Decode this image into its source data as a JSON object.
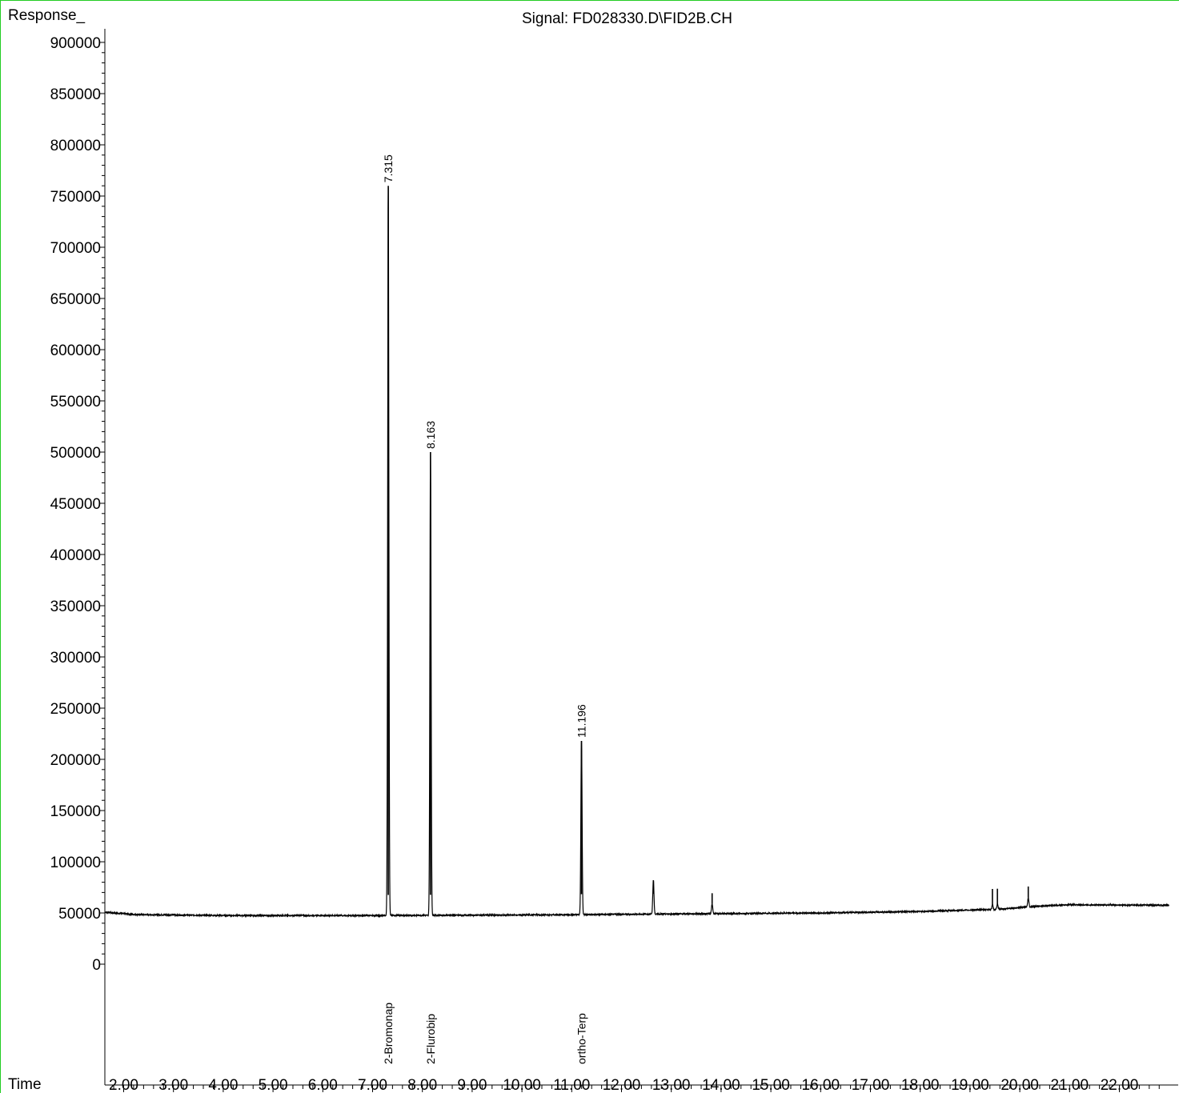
{
  "chart_data": {
    "type": "line",
    "title": "Signal: FD028330.D\\FID2B.CH",
    "ylabel": "Response_",
    "xlabel": "Time",
    "xlim": [
      1.3,
      23.0
    ],
    "ylim": [
      0,
      900000
    ],
    "x_ticks": [
      "2.00",
      "3.00",
      "4.00",
      "5.00",
      "6.00",
      "7.00",
      "8.00",
      "9.00",
      "10.00",
      "11.00",
      "12.00",
      "13.00",
      "14.00",
      "15.00",
      "16.00",
      "17.00",
      "18.00",
      "19.00",
      "20.00",
      "21.00",
      "22.00"
    ],
    "y_ticks": [
      "0",
      "50000",
      "100000",
      "150000",
      "200000",
      "250000",
      "300000",
      "350000",
      "400000",
      "450000",
      "500000",
      "550000",
      "600000",
      "650000",
      "700000",
      "750000",
      "800000",
      "850000",
      "900000"
    ],
    "baseline": [
      [
        1.3,
        57000
      ],
      [
        1.6,
        51000
      ],
      [
        2.2,
        48500
      ],
      [
        4.0,
        47500
      ],
      [
        7.0,
        47500
      ],
      [
        10.0,
        48000
      ],
      [
        13.0,
        49000
      ],
      [
        16.0,
        50000
      ],
      [
        18.0,
        51500
      ],
      [
        19.5,
        53500
      ],
      [
        20.5,
        57000
      ],
      [
        21.0,
        58000
      ],
      [
        23.0,
        57500
      ]
    ],
    "peaks": [
      {
        "rt": 7.315,
        "height": 760000,
        "label": "7.315",
        "compound": "2-Bromonap"
      },
      {
        "rt": 8.163,
        "height": 500000,
        "label": "8.163",
        "compound": "2-Flurobip"
      },
      {
        "rt": 11.196,
        "height": 218000,
        "label": "11.196",
        "compound": "ortho-Terp"
      },
      {
        "rt": 12.64,
        "height": 82000
      },
      {
        "rt": 13.82,
        "height": 59000
      },
      {
        "rt": 19.45,
        "height": 58000
      },
      {
        "rt": 19.55,
        "height": 58500
      },
      {
        "rt": 20.17,
        "height": 65000
      }
    ]
  }
}
